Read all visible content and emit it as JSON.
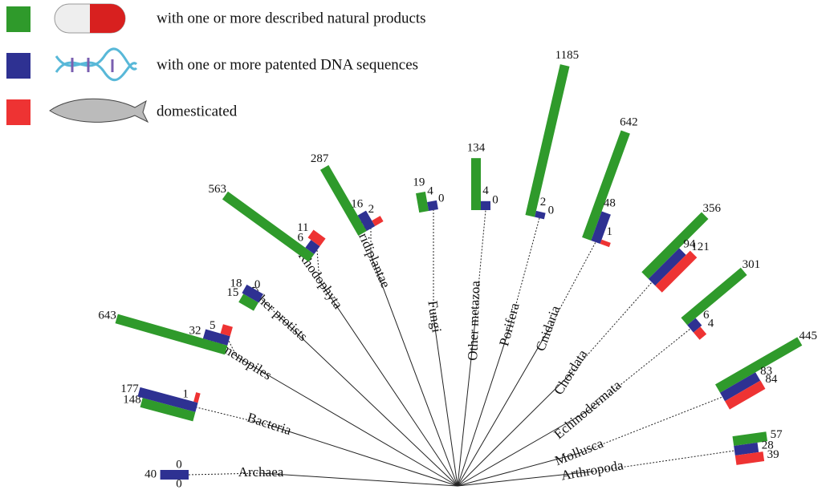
{
  "chart_data": {
    "type": "tree-bar",
    "categories": [
      "Archaea",
      "Bacteria",
      "Stramenopiles",
      "Other protists",
      "Rhodophyta",
      "Viridiplantae",
      "Fungi",
      "Other metazoa",
      "Porifera",
      "Cnidaria",
      "Chordata",
      "Echinodermata",
      "Mollusca",
      "Arthropoda"
    ],
    "series": [
      {
        "name": "with one or more described natural products",
        "color": "#2f9a2b",
        "values": [
          0,
          148,
          643,
          15,
          563,
          287,
          19,
          134,
          1185,
          642,
          356,
          301,
          445,
          57
        ]
      },
      {
        "name": "with one or more patented DNA sequences",
        "color": "#2e3192",
        "values": [
          40,
          177,
          32,
          18,
          6,
          16,
          4,
          4,
          2,
          48,
          94,
          6,
          83,
          28
        ]
      },
      {
        "name": "domesticated",
        "color": "#ee3333",
        "values": [
          0,
          1,
          5,
          0,
          11,
          2,
          0,
          0,
          0,
          1,
          121,
          4,
          84,
          39
        ]
      }
    ]
  }
}
